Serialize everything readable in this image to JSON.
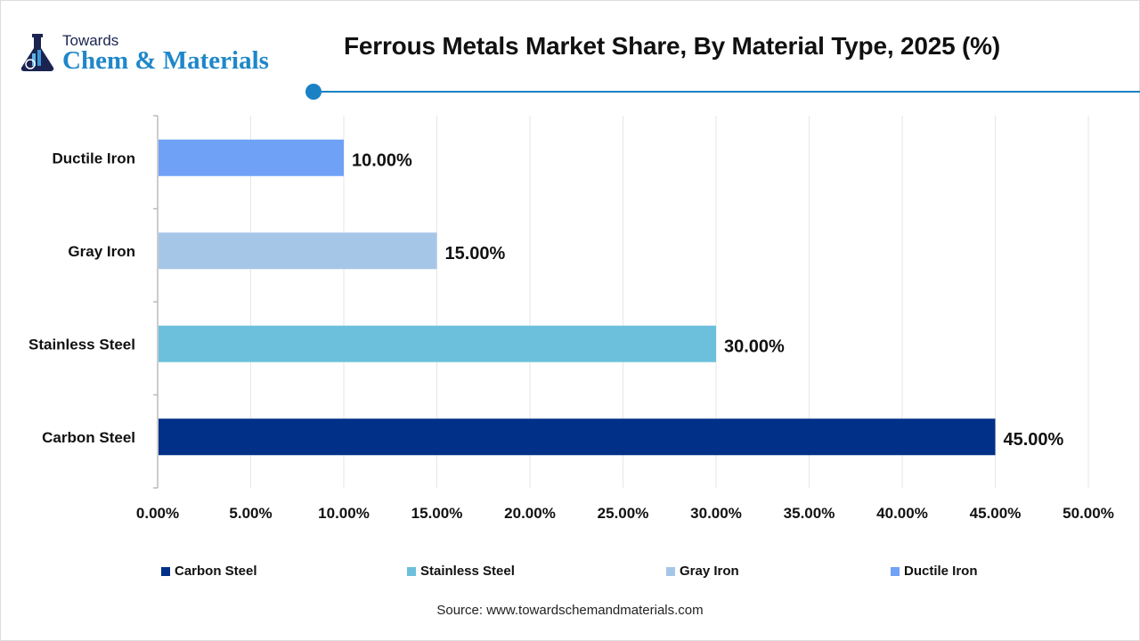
{
  "logo": {
    "line1": "Towards",
    "line2": "Chem & Materials"
  },
  "chart_data": {
    "type": "bar",
    "orientation": "horizontal",
    "title": "Ferrous Metals Market Share, By Material Type, 2025 (%)",
    "categories": [
      "Ductile Iron",
      "Gray Iron",
      "Stainless Steel",
      "Carbon Steel"
    ],
    "values": [
      10.0,
      15.0,
      30.0,
      45.0
    ],
    "value_labels": [
      "10.00%",
      "15.00%",
      "30.00%",
      "45.00%"
    ],
    "colors": [
      "#6fa2f7",
      "#a6c6e8",
      "#6cc0dc",
      "#003087"
    ],
    "xlim": [
      0,
      50
    ],
    "xticks": [
      "0.00%",
      "5.00%",
      "10.00%",
      "15.00%",
      "20.00%",
      "25.00%",
      "30.00%",
      "35.00%",
      "40.00%",
      "45.00%",
      "50.00%"
    ],
    "grid": "vertical",
    "legend_position": "bottom",
    "legend": [
      {
        "label": "Carbon Steel",
        "color": "#003087"
      },
      {
        "label": "Stainless Steel",
        "color": "#6cc0dc"
      },
      {
        "label": "Gray Iron",
        "color": "#a6c6e8"
      },
      {
        "label": "Ductile Iron",
        "color": "#6fa2f7"
      }
    ]
  },
  "source": "Source: www.towardschemandmaterials.com"
}
